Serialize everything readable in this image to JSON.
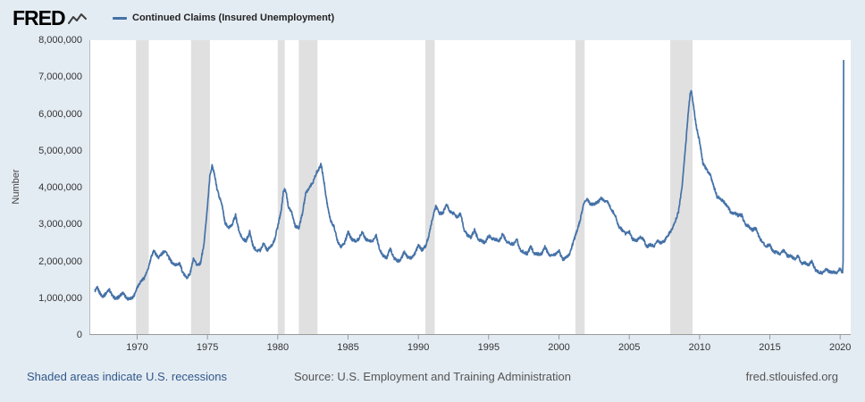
{
  "header": {
    "logo_text": "FRED",
    "legend_label": "Continued Claims (Insured Unemployment)"
  },
  "footer": {
    "recessions_note": "Shaded areas indicate U.S. recessions",
    "source": "Source: U.S. Employment and Training Administration",
    "site": "fred.stlouisfed.org"
  },
  "colors": {
    "background": "#e4ecf3",
    "plot_background": "#ffffff",
    "recession_band": "#e0e0e0",
    "axis": "#999999",
    "series_line": "#4572a7"
  },
  "chart_data": {
    "type": "line",
    "title": "Continued Claims (Insured Unemployment)",
    "xlabel": "",
    "ylabel": "Number",
    "ylim": [
      0,
      8000000
    ],
    "xlim": [
      1966.6,
      2020.75
    ],
    "grid": false,
    "legend_position": "top-left",
    "y_tick_values": [
      0,
      1000000,
      2000000,
      3000000,
      4000000,
      5000000,
      6000000,
      7000000,
      8000000
    ],
    "y_tick_labels": [
      "0",
      "1,000,000",
      "2,000,000",
      "3,000,000",
      "4,000,000",
      "5,000,000",
      "6,000,000",
      "7,000,000",
      "8,000,000"
    ],
    "x_tick_values": [
      1970,
      1975,
      1980,
      1985,
      1990,
      1995,
      2000,
      2005,
      2010,
      2015,
      2020
    ],
    "x_tick_labels": [
      "1970",
      "1975",
      "1980",
      "1985",
      "1990",
      "1995",
      "2000",
      "2005",
      "2010",
      "2015",
      "2020"
    ],
    "recessions": [
      [
        1969.92,
        1970.83
      ],
      [
        1973.83,
        1975.17
      ],
      [
        1980.0,
        1980.5
      ],
      [
        1981.5,
        1982.83
      ],
      [
        1990.5,
        1991.17
      ],
      [
        2001.17,
        2001.83
      ],
      [
        2007.92,
        2009.5
      ]
    ],
    "series": [
      {
        "name": "Continued Claims (Insured Unemployment)",
        "color": "#4572a7",
        "points": [
          [
            1967.0,
            1200000
          ],
          [
            1967.17,
            1280000
          ],
          [
            1967.33,
            1150000
          ],
          [
            1967.5,
            1050000
          ],
          [
            1967.67,
            1080000
          ],
          [
            1967.83,
            1150000
          ],
          [
            1968.0,
            1250000
          ],
          [
            1968.25,
            1050000
          ],
          [
            1968.5,
            980000
          ],
          [
            1968.75,
            1050000
          ],
          [
            1969.0,
            1150000
          ],
          [
            1969.25,
            1000000
          ],
          [
            1969.5,
            970000
          ],
          [
            1969.75,
            1050000
          ],
          [
            1970.0,
            1300000
          ],
          [
            1970.25,
            1450000
          ],
          [
            1970.5,
            1550000
          ],
          [
            1970.75,
            1750000
          ],
          [
            1971.0,
            2100000
          ],
          [
            1971.17,
            2300000
          ],
          [
            1971.33,
            2200000
          ],
          [
            1971.5,
            2100000
          ],
          [
            1971.75,
            2200000
          ],
          [
            1972.0,
            2300000
          ],
          [
            1972.25,
            2100000
          ],
          [
            1972.5,
            1950000
          ],
          [
            1972.75,
            1900000
          ],
          [
            1973.0,
            1950000
          ],
          [
            1973.25,
            1700000
          ],
          [
            1973.5,
            1550000
          ],
          [
            1973.75,
            1650000
          ],
          [
            1974.0,
            2050000
          ],
          [
            1974.25,
            1900000
          ],
          [
            1974.5,
            1950000
          ],
          [
            1974.75,
            2450000
          ],
          [
            1975.0,
            3500000
          ],
          [
            1975.17,
            4300000
          ],
          [
            1975.33,
            4600000
          ],
          [
            1975.5,
            4350000
          ],
          [
            1975.67,
            4000000
          ],
          [
            1975.83,
            3750000
          ],
          [
            1976.0,
            3600000
          ],
          [
            1976.25,
            3050000
          ],
          [
            1976.5,
            2900000
          ],
          [
            1976.75,
            3000000
          ],
          [
            1977.0,
            3250000
          ],
          [
            1977.25,
            2800000
          ],
          [
            1977.5,
            2600000
          ],
          [
            1977.75,
            2550000
          ],
          [
            1978.0,
            2800000
          ],
          [
            1978.25,
            2400000
          ],
          [
            1978.5,
            2300000
          ],
          [
            1978.75,
            2300000
          ],
          [
            1979.0,
            2500000
          ],
          [
            1979.25,
            2300000
          ],
          [
            1979.5,
            2400000
          ],
          [
            1979.75,
            2550000
          ],
          [
            1980.0,
            2950000
          ],
          [
            1980.25,
            3400000
          ],
          [
            1980.42,
            3950000
          ],
          [
            1980.58,
            3900000
          ],
          [
            1980.75,
            3500000
          ],
          [
            1981.0,
            3300000
          ],
          [
            1981.25,
            2950000
          ],
          [
            1981.5,
            2900000
          ],
          [
            1981.75,
            3300000
          ],
          [
            1982.0,
            3850000
          ],
          [
            1982.25,
            4000000
          ],
          [
            1982.5,
            4150000
          ],
          [
            1982.75,
            4400000
          ],
          [
            1983.0,
            4550000
          ],
          [
            1983.08,
            4650000
          ],
          [
            1983.25,
            4250000
          ],
          [
            1983.5,
            3600000
          ],
          [
            1983.75,
            3100000
          ],
          [
            1984.0,
            2950000
          ],
          [
            1984.25,
            2550000
          ],
          [
            1984.5,
            2400000
          ],
          [
            1984.75,
            2500000
          ],
          [
            1985.0,
            2800000
          ],
          [
            1985.25,
            2600000
          ],
          [
            1985.5,
            2550000
          ],
          [
            1985.75,
            2600000
          ],
          [
            1986.0,
            2800000
          ],
          [
            1986.25,
            2600000
          ],
          [
            1986.5,
            2550000
          ],
          [
            1986.75,
            2550000
          ],
          [
            1987.0,
            2700000
          ],
          [
            1987.25,
            2300000
          ],
          [
            1987.5,
            2150000
          ],
          [
            1987.75,
            2100000
          ],
          [
            1988.0,
            2350000
          ],
          [
            1988.25,
            2100000
          ],
          [
            1988.5,
            2000000
          ],
          [
            1988.75,
            2050000
          ],
          [
            1989.0,
            2250000
          ],
          [
            1989.25,
            2100000
          ],
          [
            1989.5,
            2100000
          ],
          [
            1989.75,
            2200000
          ],
          [
            1990.0,
            2450000
          ],
          [
            1990.25,
            2300000
          ],
          [
            1990.5,
            2400000
          ],
          [
            1990.75,
            2700000
          ],
          [
            1991.0,
            3150000
          ],
          [
            1991.25,
            3500000
          ],
          [
            1991.5,
            3300000
          ],
          [
            1991.75,
            3300000
          ],
          [
            1992.0,
            3550000
          ],
          [
            1992.25,
            3350000
          ],
          [
            1992.5,
            3300000
          ],
          [
            1992.75,
            3200000
          ],
          [
            1993.0,
            3300000
          ],
          [
            1993.25,
            2850000
          ],
          [
            1993.5,
            2700000
          ],
          [
            1993.75,
            2650000
          ],
          [
            1994.0,
            2850000
          ],
          [
            1994.25,
            2600000
          ],
          [
            1994.5,
            2550000
          ],
          [
            1994.75,
            2500000
          ],
          [
            1995.0,
            2700000
          ],
          [
            1995.25,
            2600000
          ],
          [
            1995.5,
            2600000
          ],
          [
            1995.75,
            2550000
          ],
          [
            1996.0,
            2750000
          ],
          [
            1996.25,
            2550000
          ],
          [
            1996.5,
            2500000
          ],
          [
            1996.75,
            2450000
          ],
          [
            1997.0,
            2600000
          ],
          [
            1997.25,
            2300000
          ],
          [
            1997.5,
            2250000
          ],
          [
            1997.75,
            2200000
          ],
          [
            1998.0,
            2400000
          ],
          [
            1998.25,
            2200000
          ],
          [
            1998.5,
            2200000
          ],
          [
            1998.75,
            2200000
          ],
          [
            1999.0,
            2400000
          ],
          [
            1999.25,
            2200000
          ],
          [
            1999.5,
            2150000
          ],
          [
            1999.75,
            2200000
          ],
          [
            2000.0,
            2300000
          ],
          [
            2000.25,
            2050000
          ],
          [
            2000.5,
            2100000
          ],
          [
            2000.75,
            2200000
          ],
          [
            2001.0,
            2500000
          ],
          [
            2001.25,
            2800000
          ],
          [
            2001.5,
            3100000
          ],
          [
            2001.75,
            3550000
          ],
          [
            2002.0,
            3700000
          ],
          [
            2002.25,
            3550000
          ],
          [
            2002.5,
            3550000
          ],
          [
            2002.75,
            3600000
          ],
          [
            2003.0,
            3700000
          ],
          [
            2003.25,
            3650000
          ],
          [
            2003.5,
            3600000
          ],
          [
            2003.75,
            3400000
          ],
          [
            2004.0,
            3250000
          ],
          [
            2004.25,
            2950000
          ],
          [
            2004.5,
            2850000
          ],
          [
            2004.75,
            2750000
          ],
          [
            2005.0,
            2800000
          ],
          [
            2005.25,
            2600000
          ],
          [
            2005.5,
            2550000
          ],
          [
            2005.75,
            2650000
          ],
          [
            2006.0,
            2600000
          ],
          [
            2006.25,
            2400000
          ],
          [
            2006.5,
            2450000
          ],
          [
            2006.75,
            2400000
          ],
          [
            2007.0,
            2550000
          ],
          [
            2007.25,
            2500000
          ],
          [
            2007.5,
            2550000
          ],
          [
            2007.75,
            2700000
          ],
          [
            2008.0,
            2850000
          ],
          [
            2008.25,
            3050000
          ],
          [
            2008.5,
            3350000
          ],
          [
            2008.75,
            4000000
          ],
          [
            2009.0,
            5100000
          ],
          [
            2009.17,
            5900000
          ],
          [
            2009.33,
            6550000
          ],
          [
            2009.42,
            6600000
          ],
          [
            2009.58,
            6200000
          ],
          [
            2009.75,
            5700000
          ],
          [
            2010.0,
            5250000
          ],
          [
            2010.25,
            4650000
          ],
          [
            2010.5,
            4500000
          ],
          [
            2010.75,
            4350000
          ],
          [
            2011.0,
            4050000
          ],
          [
            2011.25,
            3750000
          ],
          [
            2011.5,
            3700000
          ],
          [
            2011.75,
            3600000
          ],
          [
            2012.0,
            3500000
          ],
          [
            2012.25,
            3300000
          ],
          [
            2012.5,
            3300000
          ],
          [
            2012.75,
            3250000
          ],
          [
            2013.0,
            3250000
          ],
          [
            2013.25,
            3000000
          ],
          [
            2013.5,
            2950000
          ],
          [
            2013.75,
            2850000
          ],
          [
            2014.0,
            2900000
          ],
          [
            2014.25,
            2650000
          ],
          [
            2014.5,
            2500000
          ],
          [
            2014.75,
            2400000
          ],
          [
            2015.0,
            2450000
          ],
          [
            2015.25,
            2250000
          ],
          [
            2015.5,
            2250000
          ],
          [
            2015.75,
            2200000
          ],
          [
            2016.0,
            2300000
          ],
          [
            2016.25,
            2150000
          ],
          [
            2016.5,
            2150000
          ],
          [
            2016.75,
            2050000
          ],
          [
            2017.0,
            2150000
          ],
          [
            2017.25,
            1950000
          ],
          [
            2017.5,
            1950000
          ],
          [
            2017.75,
            1900000
          ],
          [
            2018.0,
            2000000
          ],
          [
            2018.25,
            1750000
          ],
          [
            2018.5,
            1700000
          ],
          [
            2018.75,
            1680000
          ],
          [
            2019.0,
            1800000
          ],
          [
            2019.25,
            1700000
          ],
          [
            2019.5,
            1700000
          ],
          [
            2019.75,
            1680000
          ],
          [
            2020.0,
            1800000
          ],
          [
            2020.1,
            1700000
          ],
          [
            2020.17,
            1720000
          ],
          [
            2020.21,
            2000000
          ],
          [
            2020.25,
            7450000
          ]
        ]
      }
    ]
  }
}
